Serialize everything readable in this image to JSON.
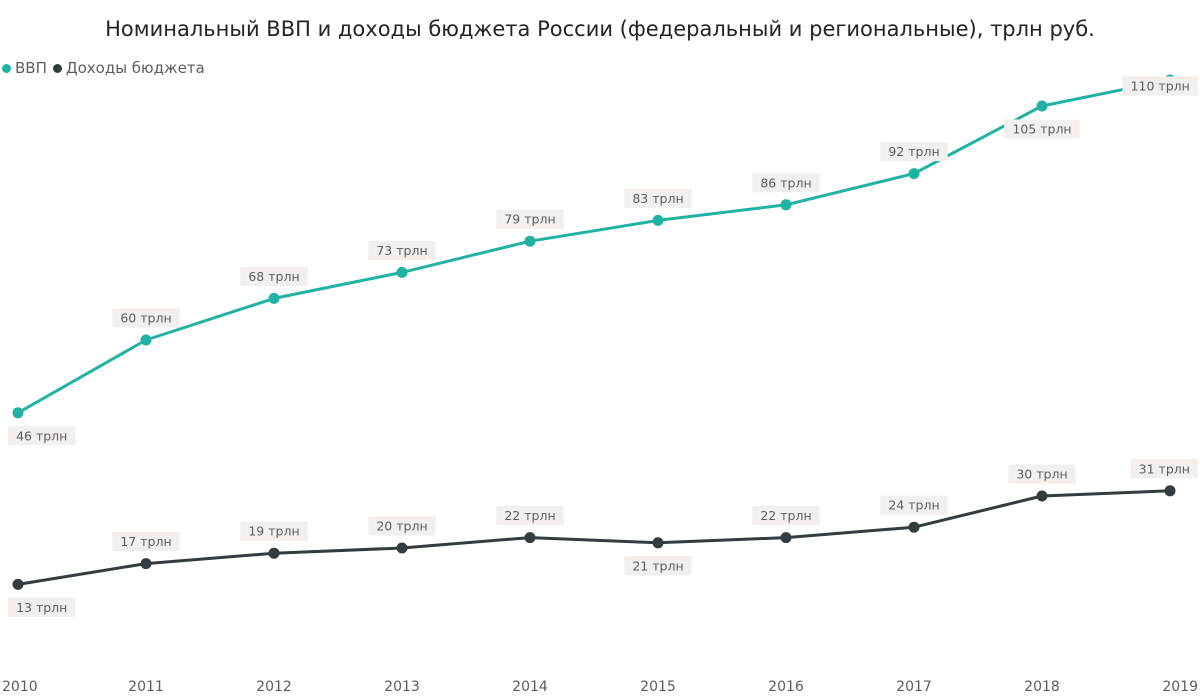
{
  "chart_data": {
    "type": "line",
    "title": "Номинальный ВВП и доходы бюджета России (федеральный и региональные), трлн руб.",
    "xlabel": "",
    "ylabel": "",
    "ylim": [
      0,
      115
    ],
    "grid": false,
    "legend_position": "top-left",
    "categories": [
      "2010",
      "2011",
      "2012",
      "2013",
      "2014",
      "2015",
      "2016",
      "2017",
      "2018",
      "2019"
    ],
    "series": [
      {
        "name": "ВВП",
        "color": "#20b2a2",
        "values": [
          46,
          60,
          68,
          73,
          79,
          83,
          86,
          92,
          105,
          110
        ],
        "labels": [
          "46 трлн",
          "60 трлн",
          "68 трлн",
          "73 трлн",
          "79 трлн",
          "83 трлн",
          "86 трлн",
          "92 трлн",
          "105 трлн",
          "110 трлн"
        ]
      },
      {
        "name": "Доходы бюджета",
        "color": "#333d3f",
        "values": [
          13,
          17,
          19,
          20,
          22,
          21,
          22,
          24,
          30,
          31
        ],
        "labels": [
          "13 трлн",
          "17 трлн",
          "19 трлн",
          "20 трлн",
          "22 трлн",
          "21 трлн",
          "22 трлн",
          "24 трлн",
          "30 трлн",
          "31 трлн"
        ]
      }
    ]
  }
}
